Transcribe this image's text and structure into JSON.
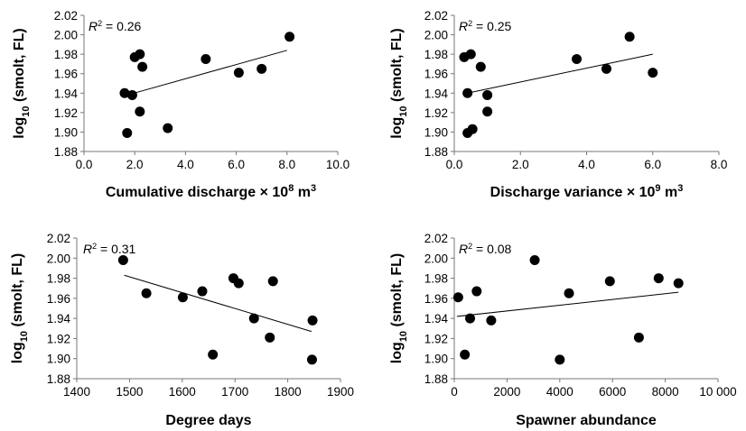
{
  "chart_data": [
    {
      "type": "scatter",
      "ylabel_main": "log",
      "ylabel_sub": "10",
      "ylabel_rest": " (smolt, FL)",
      "xlabel_main": "Cumulative discharge × 10",
      "xlabel_sup1": "8",
      "xlabel_mid": " m",
      "xlabel_sup2": "3",
      "r2_label": "R",
      "r2_sup": "2",
      "r2_value": " = 0.26",
      "xlim": [
        0,
        10
      ],
      "ylim": [
        1.88,
        2.02
      ],
      "x_ticks": [
        "0.0",
        "2.0",
        "4.0",
        "6.0",
        "8.0",
        "10.0"
      ],
      "y_ticks": [
        "1.88",
        "1.90",
        "1.92",
        "1.94",
        "1.96",
        "1.98",
        "2.00",
        "2.02"
      ],
      "trend": [
        [
          1.7,
          1.938
        ],
        [
          8.0,
          1.984
        ]
      ],
      "points": [
        [
          1.6,
          1.94
        ],
        [
          1.7,
          1.899
        ],
        [
          1.9,
          1.938
        ],
        [
          2.0,
          1.977
        ],
        [
          2.2,
          1.98
        ],
        [
          2.3,
          1.967
        ],
        [
          2.2,
          1.921
        ],
        [
          3.3,
          1.904
        ],
        [
          4.8,
          1.975
        ],
        [
          6.1,
          1.961
        ],
        [
          7.0,
          1.965
        ],
        [
          8.1,
          1.998
        ]
      ]
    },
    {
      "type": "scatter",
      "ylabel_main": "log",
      "ylabel_sub": "10",
      "ylabel_rest": " (smolt, FL)",
      "xlabel_main": "Discharge variance × 10",
      "xlabel_sup1": "9",
      "xlabel_mid": " m",
      "xlabel_sup2": "3",
      "r2_label": "R",
      "r2_sup": "2",
      "r2_value": " = 0.25",
      "xlim": [
        0,
        8
      ],
      "ylim": [
        1.88,
        2.02
      ],
      "x_ticks": [
        "0.0",
        "2.0",
        "4.0",
        "6.0",
        "8.0"
      ],
      "y_ticks": [
        "1.88",
        "1.90",
        "1.92",
        "1.94",
        "1.96",
        "1.98",
        "2.00",
        "2.02"
      ],
      "trend": [
        [
          0.4,
          1.94
        ],
        [
          6.0,
          1.98
        ]
      ],
      "points": [
        [
          0.3,
          1.977
        ],
        [
          0.5,
          1.98
        ],
        [
          0.4,
          1.94
        ],
        [
          0.4,
          1.899
        ],
        [
          0.55,
          1.903
        ],
        [
          0.8,
          1.967
        ],
        [
          1.0,
          1.938
        ],
        [
          1.0,
          1.921
        ],
        [
          3.7,
          1.975
        ],
        [
          4.6,
          1.965
        ],
        [
          5.3,
          1.998
        ],
        [
          6.0,
          1.961
        ]
      ]
    },
    {
      "type": "scatter",
      "ylabel_main": "log",
      "ylabel_sub": "10",
      "ylabel_rest": " (smolt, FL)",
      "xlabel_main": "Degree days",
      "r2_label": "R",
      "r2_sup": "2",
      "r2_value": " = 0.31",
      "xlim": [
        1400,
        1900
      ],
      "ylim": [
        1.88,
        2.02
      ],
      "x_ticks": [
        "1400",
        "1500",
        "1600",
        "1700",
        "1800",
        "1900"
      ],
      "y_ticks": [
        "1.88",
        "1.90",
        "1.92",
        "1.94",
        "1.96",
        "1.98",
        "2.00",
        "2.02"
      ],
      "trend": [
        [
          1490,
          1.983
        ],
        [
          1845,
          1.927
        ]
      ],
      "points": [
        [
          1488,
          1.998
        ],
        [
          1532,
          1.965
        ],
        [
          1601,
          1.961
        ],
        [
          1638,
          1.967
        ],
        [
          1658,
          1.904
        ],
        [
          1697,
          1.98
        ],
        [
          1707,
          1.975
        ],
        [
          1736,
          1.94
        ],
        [
          1766,
          1.921
        ],
        [
          1772,
          1.977
        ],
        [
          1847,
          1.938
        ],
        [
          1846,
          1.899
        ]
      ]
    },
    {
      "type": "scatter",
      "ylabel_main": "log",
      "ylabel_sub": "10",
      "ylabel_rest": " (smolt, FL)",
      "xlabel_main": "Spawner abundance",
      "r2_label": "R",
      "r2_sup": "2",
      "r2_value": " = 0.08",
      "xlim": [
        0,
        10000
      ],
      "ylim": [
        1.88,
        2.02
      ],
      "x_ticks": [
        "0",
        "2000",
        "4000",
        "6000",
        "8000",
        "10 000"
      ],
      "y_ticks": [
        "1.88",
        "1.90",
        "1.92",
        "1.94",
        "1.96",
        "1.98",
        "2.00",
        "2.02"
      ],
      "trend": [
        [
          100,
          1.942
        ],
        [
          8500,
          1.966
        ]
      ],
      "points": [
        [
          150,
          1.961
        ],
        [
          400,
          1.904
        ],
        [
          600,
          1.94
        ],
        [
          850,
          1.967
        ],
        [
          1400,
          1.938
        ],
        [
          3050,
          1.998
        ],
        [
          4000,
          1.899
        ],
        [
          4350,
          1.965
        ],
        [
          5900,
          1.977
        ],
        [
          7000,
          1.921
        ],
        [
          7750,
          1.98
        ],
        [
          8500,
          1.975
        ]
      ]
    }
  ]
}
